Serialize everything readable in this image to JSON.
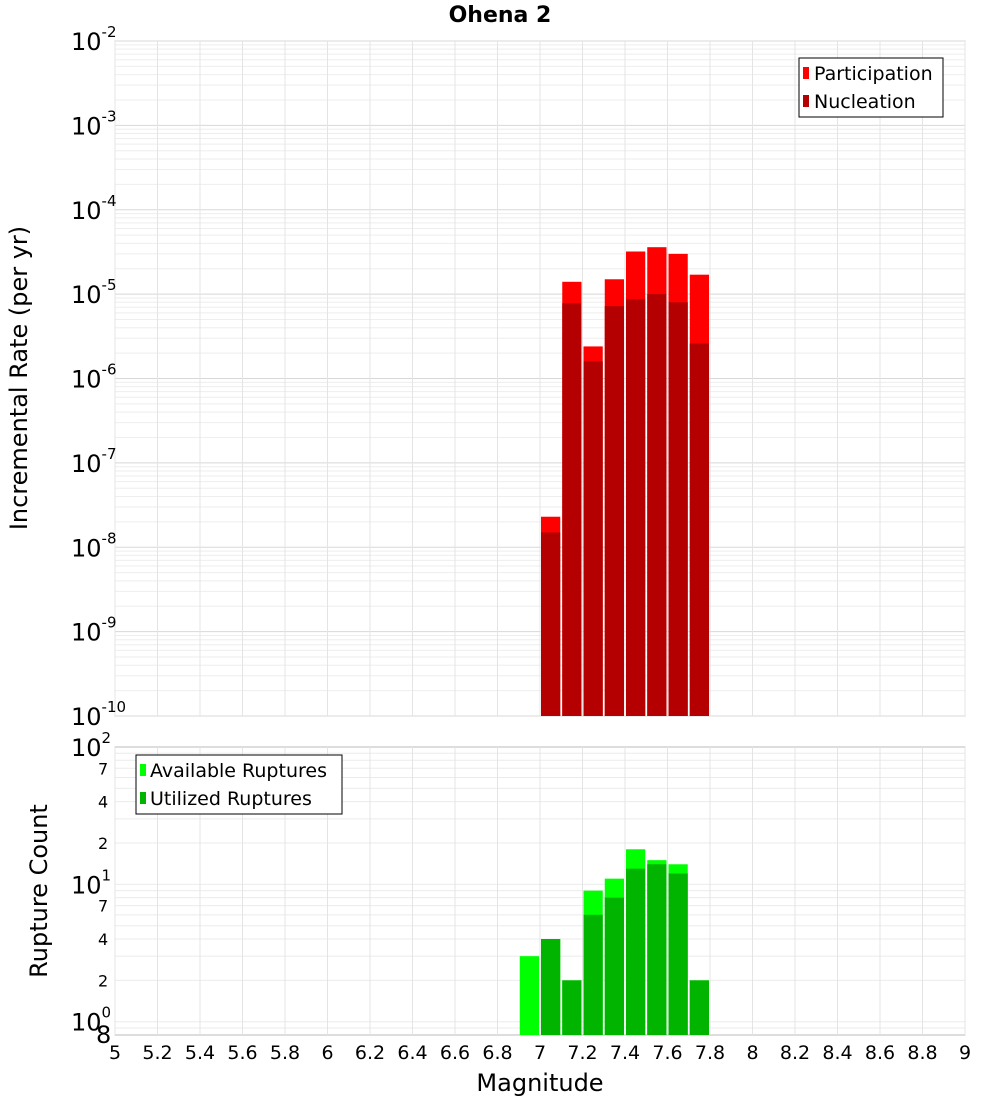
{
  "chart_data": [
    {
      "type": "bar",
      "title": "Ohena 2",
      "ylabel": "Incremental Rate (per yr)",
      "yscale": "log",
      "ylim": [
        1e-10,
        0.01
      ],
      "xlim": [
        5,
        9
      ],
      "grid": true,
      "legend_position": "top-right",
      "y_ticks": [
        {
          "base": "10",
          "exp": "-10",
          "value": 1e-10
        },
        {
          "base": "10",
          "exp": "-9",
          "value": 1e-09
        },
        {
          "base": "10",
          "exp": "-8",
          "value": 1e-08
        },
        {
          "base": "10",
          "exp": "-7",
          "value": 1e-07
        },
        {
          "base": "10",
          "exp": "-6",
          "value": 1e-06
        },
        {
          "base": "10",
          "exp": "-5",
          "value": 1e-05
        },
        {
          "base": "10",
          "exp": "-4",
          "value": 0.0001
        },
        {
          "base": "10",
          "exp": "-3",
          "value": 0.001
        },
        {
          "base": "10",
          "exp": "-2",
          "value": 0.01
        }
      ],
      "series": [
        {
          "name": "Participation",
          "color": "#ff0000",
          "points": [
            {
              "x": 7.0,
              "y": 2.3e-08
            },
            {
              "x": 7.1,
              "y": 1.4e-05
            },
            {
              "x": 7.2,
              "y": 2.4e-06
            },
            {
              "x": 7.3,
              "y": 1.5e-05
            },
            {
              "x": 7.4,
              "y": 3.2e-05
            },
            {
              "x": 7.5,
              "y": 3.6e-05
            },
            {
              "x": 7.6,
              "y": 3e-05
            },
            {
              "x": 7.7,
              "y": 1.7e-05
            }
          ]
        },
        {
          "name": "Nucleation",
          "color": "#b40000",
          "points": [
            {
              "x": 7.0,
              "y": 1.5e-08
            },
            {
              "x": 7.1,
              "y": 7.8e-06
            },
            {
              "x": 7.2,
              "y": 1.6e-06
            },
            {
              "x": 7.3,
              "y": 7.2e-06
            },
            {
              "x": 7.4,
              "y": 8.7e-06
            },
            {
              "x": 7.5,
              "y": 1e-05
            },
            {
              "x": 7.6,
              "y": 8e-06
            },
            {
              "x": 7.7,
              "y": 2.6e-06
            }
          ]
        }
      ]
    },
    {
      "type": "bar",
      "xlabel": "Magnitude",
      "ylabel": "Rupture Count",
      "yscale": "log",
      "ylim": [
        0.8,
        100
      ],
      "xlim": [
        5,
        9
      ],
      "grid": true,
      "legend_position": "top-left",
      "x_ticks": [
        "5",
        "5.2",
        "5.4",
        "5.6",
        "5.8",
        "6",
        "6.2",
        "6.4",
        "6.6",
        "6.8",
        "7",
        "7.2",
        "7.4",
        "7.6",
        "7.8",
        "8",
        "8.2",
        "8.4",
        "8.6",
        "8.8",
        "9"
      ],
      "y_major_ticks": [
        {
          "base": "10",
          "exp": "0",
          "value": 1
        },
        {
          "base": "10",
          "exp": "1",
          "value": 10
        },
        {
          "base": "10",
          "exp": "2",
          "value": 100
        }
      ],
      "y_minor_ticks": [
        {
          "label": "8",
          "value": 0.8
        },
        {
          "label": "2",
          "value": 2
        },
        {
          "label": "4",
          "value": 4
        },
        {
          "label": "7",
          "value": 7
        },
        {
          "label": "2",
          "value": 20
        },
        {
          "label": "4",
          "value": 40
        },
        {
          "label": "7",
          "value": 70
        }
      ],
      "series": [
        {
          "name": "Available Ruptures",
          "color": "#00ff00",
          "points": [
            {
              "x": 6.9,
              "y": 3
            },
            {
              "x": 7.0,
              "y": 4
            },
            {
              "x": 7.1,
              "y": 2
            },
            {
              "x": 7.2,
              "y": 9
            },
            {
              "x": 7.3,
              "y": 11
            },
            {
              "x": 7.4,
              "y": 18
            },
            {
              "x": 7.5,
              "y": 15
            },
            {
              "x": 7.6,
              "y": 14
            },
            {
              "x": 7.7,
              "y": 2
            }
          ]
        },
        {
          "name": "Utilized Ruptures",
          "color": "#00b400",
          "points": [
            {
              "x": 6.9,
              "y": 0
            },
            {
              "x": 7.0,
              "y": 4
            },
            {
              "x": 7.1,
              "y": 2
            },
            {
              "x": 7.2,
              "y": 6
            },
            {
              "x": 7.3,
              "y": 8
            },
            {
              "x": 7.4,
              "y": 13
            },
            {
              "x": 7.5,
              "y": 14
            },
            {
              "x": 7.6,
              "y": 12
            },
            {
              "x": 7.7,
              "y": 2
            }
          ]
        }
      ]
    }
  ]
}
